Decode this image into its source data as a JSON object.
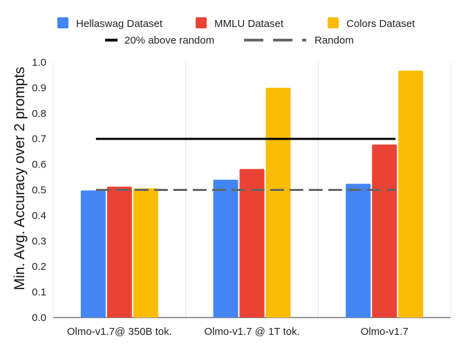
{
  "chart_data": {
    "type": "bar",
    "categories": [
      "Olmo-v1.7@ 350B tok.",
      "Olmo-v1.7 @ 1T tok.",
      "Olmo-v1.7"
    ],
    "series": [
      {
        "name": "Hellaswag Dataset",
        "color": "#4285f4",
        "values": [
          0.498,
          0.54,
          0.524
        ]
      },
      {
        "name": "MMLU Dataset",
        "color": "#ea4335",
        "values": [
          0.513,
          0.582,
          0.678
        ]
      },
      {
        "name": "Colors Dataset",
        "color": "#fbbc04",
        "values": [
          0.506,
          0.9,
          0.967
        ]
      }
    ],
    "reference_lines": [
      {
        "name": "20% above random",
        "style": "solid",
        "color": "#000000",
        "value": 0.7
      },
      {
        "name": "Random",
        "style": "dashed",
        "color": "#666666",
        "value": 0.5
      }
    ],
    "ylabel": "Min. Avg. Accuracy over 2 prompts",
    "xlabel": "",
    "ylim": [
      0,
      1.0
    ],
    "yticks": [
      "0.0",
      "0.1",
      "0.2",
      "0.3",
      "0.4",
      "0.5",
      "0.6",
      "0.7",
      "0.8",
      "0.9",
      "1.0"
    ],
    "grid": "vertical separators between categories",
    "legend": "top"
  }
}
